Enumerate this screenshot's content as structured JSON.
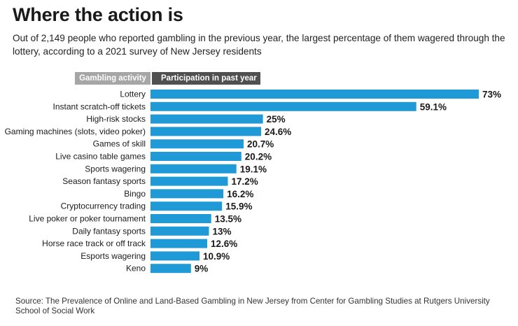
{
  "title": "Where the action is",
  "subtitle": "Out of 2,149 people who reported gambling in the previous year, the largest percentage of them wagered through the lottery, according to a 2021 survey of New Jersey residents",
  "headers": {
    "left": "Gambling activity",
    "right": "Participation in past year"
  },
  "source": "Source: The Prevalence of Online and Land-Based Gambling in New Jersey from Center for Gambling Studies at Rutgers University School of Social Work",
  "colors": {
    "bar": "#1f9ad6",
    "text": "#1a1a1a"
  },
  "chart_data": {
    "type": "bar",
    "orientation": "horizontal",
    "title": "Where the action is",
    "xlabel": "Participation in past year",
    "ylabel": "Gambling activity",
    "categories": [
      "Lottery",
      "Instant scratch-off tickets",
      "High-risk stocks",
      "Gaming machines (slots, video poker)",
      "Games of skill",
      "Live casino table games",
      "Sports wagering",
      "Season fantasy sports",
      "Bingo",
      "Cryptocurrency trading",
      "Live poker or poker tournament",
      "Daily fantasy sports",
      "Horse race track or off track",
      "Esports wagering",
      "Keno"
    ],
    "values": [
      73,
      59.1,
      25,
      24.6,
      20.7,
      20.2,
      19.1,
      17.2,
      16.2,
      15.9,
      13.5,
      13,
      12.6,
      10.9,
      9
    ],
    "labels": [
      "73%",
      "59.1%",
      "25%",
      "24.6%",
      "20.7%",
      "20.2%",
      "19.1%",
      "17.2%",
      "16.2%",
      "15.9%",
      "13.5%",
      "13%",
      "12.6%",
      "10.9%",
      "9%"
    ],
    "xlim": [
      0,
      73
    ]
  }
}
